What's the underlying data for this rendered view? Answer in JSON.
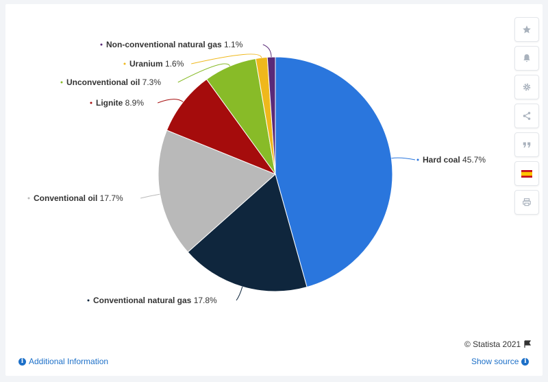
{
  "chart_data": {
    "type": "pie",
    "title": "",
    "slices": [
      {
        "label": "Hard coal",
        "value": 45.7,
        "display": "45.7%",
        "color": "#2a76dd"
      },
      {
        "label": "Conventional natural gas",
        "value": 17.8,
        "display": "17.8%",
        "color": "#0f263d"
      },
      {
        "label": "Conventional oil",
        "value": 17.7,
        "display": "17.7%",
        "color": "#b9b9b9"
      },
      {
        "label": "Lignite",
        "value": 8.9,
        "display": "8.9%",
        "color": "#a50c0c"
      },
      {
        "label": "Unconventional oil",
        "value": 7.3,
        "display": "7.3%",
        "color": "#88bb28"
      },
      {
        "label": "Uranium",
        "value": 1.6,
        "display": "1.6%",
        "color": "#efb81c"
      },
      {
        "label": "Non-conventional natural gas",
        "value": 1.1,
        "display": "1.1%",
        "color": "#5a2a78"
      }
    ]
  },
  "toolbar": {
    "icons": [
      "star-icon",
      "bell-icon",
      "gear-icon",
      "share-icon",
      "quote-icon",
      "spain-flag-icon",
      "print-icon"
    ]
  },
  "footer": {
    "copyright": "© Statista 2021",
    "additional_info": "Additional Information",
    "show_source": "Show source"
  }
}
